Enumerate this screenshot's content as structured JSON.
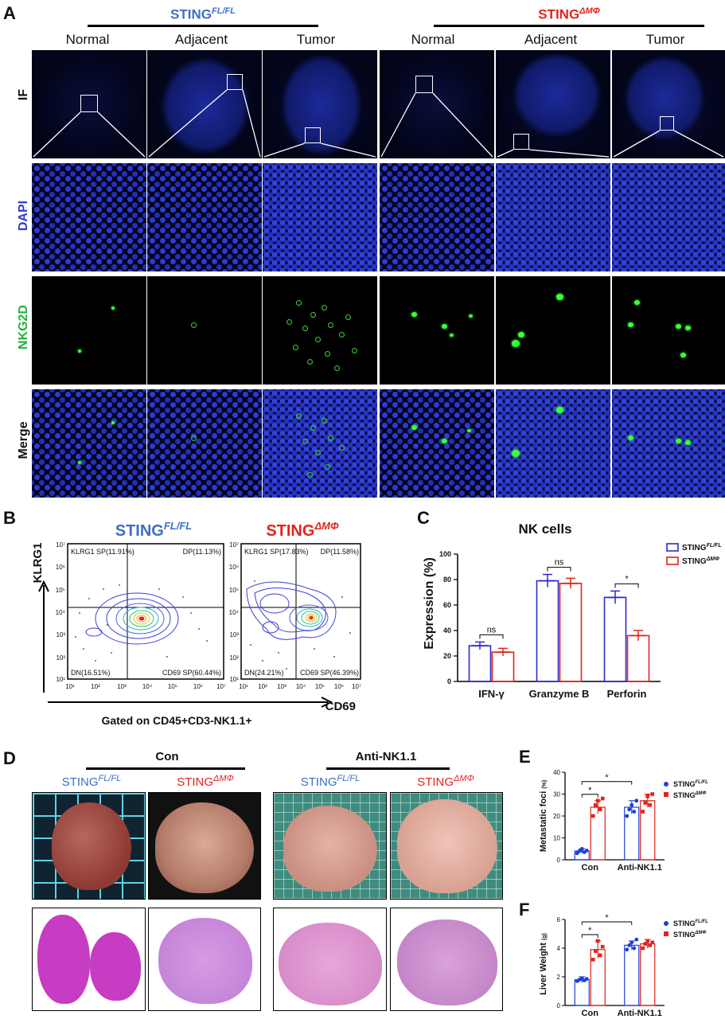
{
  "panels": {
    "A": "A",
    "B": "B",
    "C": "C",
    "D": "D",
    "E": "E",
    "F": "F"
  },
  "panelA": {
    "group_fl": {
      "base": "STING",
      "sup": "FL/FL"
    },
    "group_dm": {
      "base": "STING",
      "sup": "ΔMΦ"
    },
    "columns": [
      "Normal",
      "Adjacent",
      "Tumor",
      "Normal",
      "Adjacent",
      "Tumor"
    ],
    "rows": {
      "if": "IF",
      "dapi": "DAPI",
      "nkg2d": "NKG2D",
      "merge": "Merge"
    },
    "colors": {
      "dapi": "#2e3fd0",
      "nkg2d": "#22b33a",
      "merge": "#111111"
    }
  },
  "panelB": {
    "y_label": "KLRG1",
    "x_label": "CD69",
    "gate": "Gated on CD45+CD3-NK1.1+",
    "plots": [
      {
        "title_base": "STING",
        "title_sup": "FL/FL",
        "color": "#3f6fc2",
        "q_ul": "KLRG1 SP(11.91%)",
        "q_ur": "DP(11.13%)",
        "q_ll": "DN(16.51%)",
        "q_lr": "CD69 SP(60.44%)"
      },
      {
        "title_base": "STING",
        "title_sup": "ΔMΦ",
        "color": "#e3231b",
        "q_ul": "KLRG1 SP(17.83%)",
        "q_ur": "DP(11.58%)",
        "q_ll": "DN(24.21%)",
        "q_lr": "CD69 SP(46.39%)"
      }
    ],
    "y_ticks": [
      "10⁷",
      "10⁶",
      "10⁵",
      "10⁴",
      "10³",
      "10²",
      "10¹"
    ],
    "x_ticks": [
      "10¹",
      "10²",
      "10³",
      "10⁴",
      "10⁵",
      "10⁶",
      "10⁷"
    ]
  },
  "chart_data": [
    {
      "type": "bar",
      "title": "NK cells",
      "ylabel": "Expression (%)",
      "categories": [
        "IFN-γ",
        "Granzyme B",
        "Perforin"
      ],
      "ylim": [
        0,
        100
      ],
      "yticks": [
        0,
        20,
        40,
        60,
        80,
        100
      ],
      "series": [
        {
          "name": "STING FL/FL",
          "name_base": "STING",
          "name_sup": "FL/FL",
          "color": "#2b2bcf",
          "values": [
            28,
            79,
            66
          ],
          "errors": [
            3,
            5,
            5
          ]
        },
        {
          "name": "STING ΔMΦ",
          "name_base": "STING",
          "name_sup": "ΔMΦ",
          "color": "#e3231b",
          "values": [
            23,
            77,
            36
          ],
          "errors": [
            3,
            4,
            4
          ]
        }
      ],
      "significance": [
        "ns",
        "ns",
        "*"
      ]
    },
    {
      "type": "scatter",
      "ylabel": "Metastatic foci",
      "yunit": "(%)",
      "categories": [
        "Con",
        "Anti-NK1.1"
      ],
      "ylim": [
        0,
        40
      ],
      "yticks": [
        0,
        10,
        20,
        30,
        40
      ],
      "series": [
        {
          "name": "STING FL/FL",
          "name_base": "STING",
          "name_sup": "FL/FL",
          "color": "#1f3fd6",
          "marker": "circle",
          "means": [
            4,
            24
          ],
          "errors": [
            1,
            3
          ],
          "points": [
            [
              3,
              4,
              5,
              3.5,
              4.2
            ],
            [
              20,
              23,
              25,
              22,
              27
            ]
          ]
        },
        {
          "name": "STING ΔMΦ",
          "name_base": "STING",
          "name_sup": "ΔMΦ",
          "color": "#e3231b",
          "marker": "square",
          "means": [
            24,
            27
          ],
          "errors": [
            3,
            3
          ],
          "points": [
            [
              20,
              25,
              27,
              23,
              28
            ],
            [
              22,
              26,
              29,
              25,
              30
            ]
          ]
        }
      ],
      "significance": [
        "*",
        "*"
      ]
    },
    {
      "type": "scatter",
      "ylabel": "Liver Weight",
      "yunit": "(g)",
      "categories": [
        "Con",
        "Anti-NK1.1"
      ],
      "ylim": [
        0,
        6
      ],
      "yticks": [
        0,
        2,
        4,
        6
      ],
      "series": [
        {
          "name": "STING FL/FL",
          "name_base": "STING",
          "name_sup": "FL/FL",
          "color": "#1f3fd6",
          "marker": "circle",
          "means": [
            1.8,
            4.2
          ],
          "errors": [
            0.2,
            0.3
          ],
          "points": [
            [
              1.7,
              1.8,
              1.9,
              1.75,
              1.85
            ],
            [
              3.9,
              4.2,
              4.4,
              4.0,
              4.6
            ]
          ]
        },
        {
          "name": "STING ΔMΦ",
          "name_base": "STING",
          "name_sup": "ΔMΦ",
          "color": "#e3231b",
          "marker": "square",
          "means": [
            3.9,
            4.3
          ],
          "errors": [
            0.6,
            0.3
          ],
          "points": [
            [
              3.2,
              3.8,
              4.5,
              3.5,
              4.1
            ],
            [
              4.0,
              4.3,
              4.5,
              4.2,
              4.4
            ]
          ]
        }
      ],
      "significance": [
        "*",
        "*"
      ]
    }
  ],
  "panelD": {
    "group_con": "Con",
    "group_anti": "Anti-NK1.1",
    "labels": [
      {
        "base": "STING",
        "sup": "FL/FL",
        "color": "#3f6fc2"
      },
      {
        "base": "STING",
        "sup": "ΔMΦ",
        "color": "#e3231b"
      },
      {
        "base": "STING",
        "sup": "FL/FL",
        "color": "#3f6fc2"
      },
      {
        "base": "STING",
        "sup": "ΔMΦ",
        "color": "#e3231b"
      }
    ]
  }
}
